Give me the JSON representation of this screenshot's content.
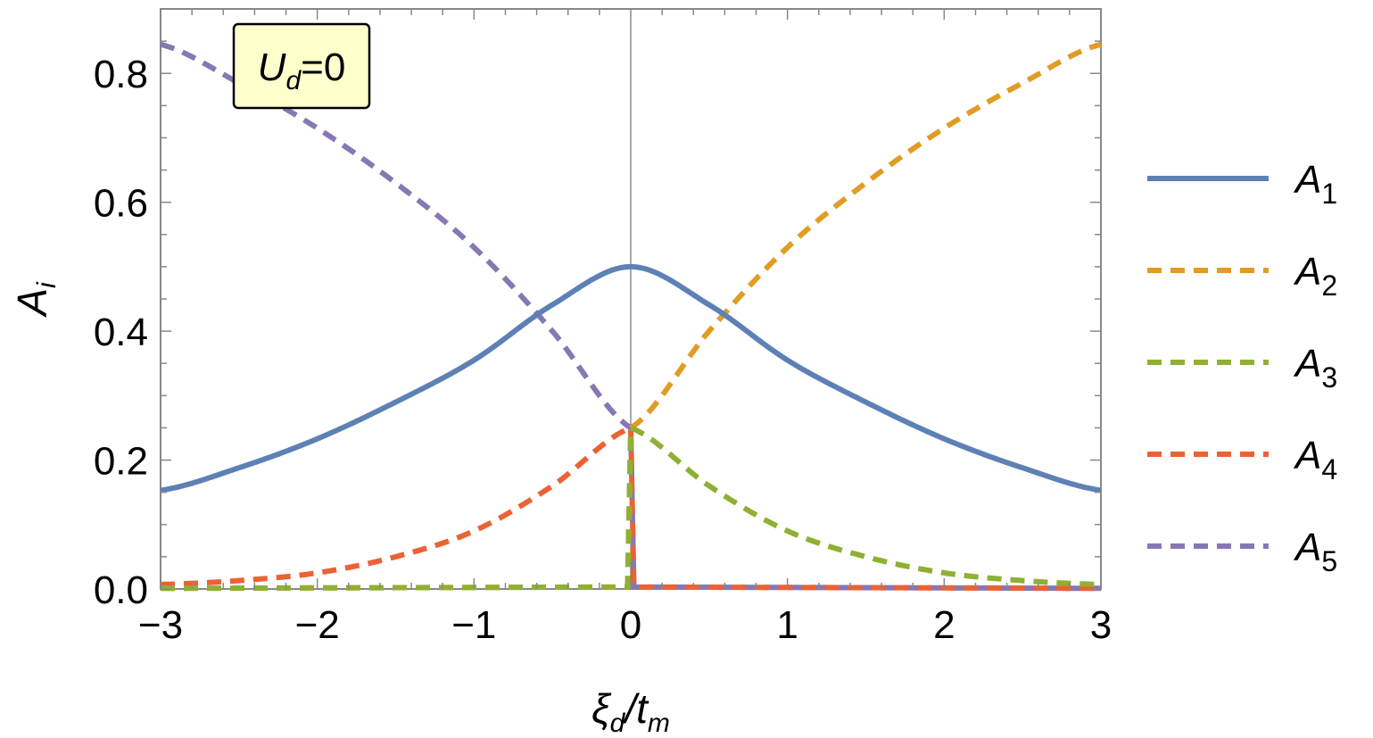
{
  "chart_data": {
    "type": "line",
    "xlabel": {
      "main": "ξ",
      "sub1": "d",
      "sep": "/t",
      "sub2": "m"
    },
    "ylabel": {
      "main": "A",
      "sub": "i"
    },
    "xlim": [
      -3,
      3
    ],
    "ylim": [
      0,
      0.9
    ],
    "x_ticks": [
      -3,
      -2,
      -1,
      0,
      1,
      2,
      3
    ],
    "x_tick_labels": [
      "−3",
      "−2",
      "−1",
      "0",
      "1",
      "2",
      "3"
    ],
    "y_ticks": [
      0,
      0.2,
      0.4,
      0.6,
      0.8
    ],
    "y_tick_labels": [
      "0.0",
      "0.2",
      "0.4",
      "0.6",
      "0.8"
    ],
    "annotation": {
      "main": "U",
      "sub": "d",
      "rest": "=0",
      "background": "#ffffcc"
    },
    "grid": false,
    "legend_position": "right",
    "x": [
      -3,
      -2.5,
      -2,
      -1.5,
      -1,
      -0.5,
      0,
      0.5,
      1,
      1.5,
      2,
      2.5,
      3
    ],
    "series": [
      {
        "name": "A",
        "sub": "1",
        "style": "solid",
        "color": "#5e81b5",
        "values": [
          0.153,
          0.188,
          0.233,
          0.29,
          0.355,
          0.441,
          0.5,
          0.441,
          0.355,
          0.29,
          0.233,
          0.188,
          0.153
        ]
      },
      {
        "name": "A",
        "sub": "2",
        "style": "dashed",
        "color": "#e19c24",
        "values": [
          0,
          0,
          0,
          0,
          0,
          0,
          0.25,
          0.4,
          0.53,
          0.63,
          0.715,
          0.785,
          0.845
        ]
      },
      {
        "name": "A",
        "sub": "3",
        "style": "dashed",
        "color": "#8fb032",
        "values": [
          0,
          0,
          0,
          0,
          0,
          0,
          0.25,
          0.16,
          0.09,
          0.05,
          0.025,
          0.013,
          0.007
        ]
      },
      {
        "name": "A",
        "sub": "4",
        "style": "dashed",
        "color": "#eb6235",
        "values": [
          0.007,
          0.013,
          0.025,
          0.05,
          0.09,
          0.16,
          0.25,
          0,
          0,
          0,
          0,
          0,
          0
        ]
      },
      {
        "name": "A",
        "sub": "5",
        "style": "dashed",
        "color": "#8778b3",
        "values": [
          0.845,
          0.785,
          0.715,
          0.63,
          0.53,
          0.4,
          0.25,
          0,
          0,
          0,
          0,
          0,
          0
        ]
      }
    ]
  }
}
